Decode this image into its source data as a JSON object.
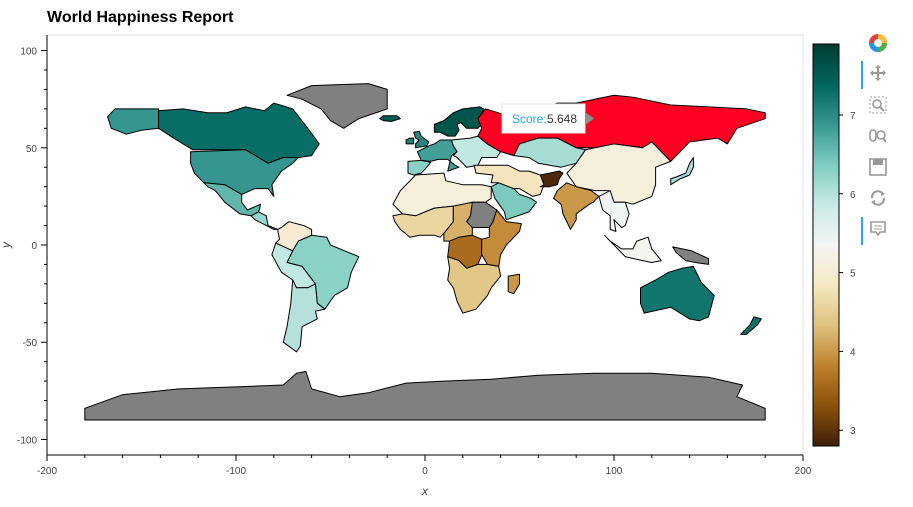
{
  "chart_data": {
    "type": "map",
    "title": "World Happiness Report",
    "xlabel": "x",
    "ylabel": "y",
    "xlim": [
      -200,
      200
    ],
    "ylim": [
      -108,
      108
    ],
    "x_ticks": [
      -200,
      -100,
      0,
      100,
      200
    ],
    "y_ticks": [
      -100,
      -50,
      0,
      50,
      100
    ],
    "grid": false,
    "no_data_color": "#808080",
    "colorbar": {
      "ticks": [
        3,
        4,
        5,
        6,
        7
      ],
      "range": [
        2.8,
        7.9
      ],
      "palette": [
        "#3d1f08",
        "#8c510a",
        "#bf812d",
        "#dfc27d",
        "#f6e8c3",
        "#f5f5f5",
        "#c7eae5",
        "#80cdc1",
        "#35978f",
        "#01665e",
        "#003c30"
      ]
    },
    "tooltip": {
      "label": "Score:",
      "value": "5.648",
      "highlight_color": "#ff0022"
    },
    "regions": [
      {
        "name": "Canada",
        "score": 7.32
      },
      {
        "name": "United States",
        "score": 6.89
      },
      {
        "name": "Mexico",
        "score": 6.59
      },
      {
        "name": "Central America",
        "score": 6.2
      },
      {
        "name": "Colombia / Venezuela",
        "score": 5.0
      },
      {
        "name": "Brazil",
        "score": 6.3
      },
      {
        "name": "Peru / Bolivia",
        "score": 5.9
      },
      {
        "name": "Chile / Argentina",
        "score": 6.0
      },
      {
        "name": "Alaska",
        "score": 6.89
      },
      {
        "name": "Greenland",
        "score": null
      },
      {
        "name": "Iceland",
        "score": 7.5
      },
      {
        "name": "United Kingdom",
        "score": 7.05
      },
      {
        "name": "Ireland",
        "score": 7.1
      },
      {
        "name": "Scandinavia",
        "score": 7.6
      },
      {
        "name": "Western Europe",
        "score": 6.8
      },
      {
        "name": "Spain / Portugal",
        "score": 6.3
      },
      {
        "name": "Eastern Europe",
        "score": 5.9
      },
      {
        "name": "Russia",
        "score": 5.648
      },
      {
        "name": "North Africa",
        "score": 5.1
      },
      {
        "name": "West Africa",
        "score": 4.6
      },
      {
        "name": "Sudan",
        "score": null
      },
      {
        "name": "Central Africa",
        "score": 4.2
      },
      {
        "name": "DR Congo",
        "score": 3.6
      },
      {
        "name": "East Africa",
        "score": 3.9
      },
      {
        "name": "Southern Africa",
        "score": 4.4
      },
      {
        "name": "Madagascar",
        "score": 4.0
      },
      {
        "name": "Saudi Arabia",
        "score": 6.4
      },
      {
        "name": "Iran / Middle East",
        "score": 4.8
      },
      {
        "name": "Afghanistan",
        "score": 2.9
      },
      {
        "name": "Kazakhstan",
        "score": 6.1
      },
      {
        "name": "Mongolia / China",
        "score": 5.1
      },
      {
        "name": "India",
        "score": 4.0
      },
      {
        "name": "Southeast Asia",
        "score": 5.4
      },
      {
        "name": "Indonesia",
        "score": 5.3
      },
      {
        "name": "Japan",
        "score": 6.1
      },
      {
        "name": "Papua New Guinea",
        "score": null
      },
      {
        "name": "Australia",
        "score": 7.23
      },
      {
        "name": "New Zealand",
        "score": 7.28
      },
      {
        "name": "Antarctica",
        "score": null
      }
    ]
  },
  "toolbar": {
    "tools": [
      {
        "icon": "pan-icon",
        "active": true
      },
      {
        "icon": "box-zoom-icon",
        "active": false
      },
      {
        "icon": "wheel-zoom-icon",
        "active": false
      },
      {
        "icon": "save-icon",
        "active": false
      },
      {
        "icon": "reset-icon",
        "active": false
      },
      {
        "icon": "hover-icon",
        "active": true
      }
    ]
  }
}
